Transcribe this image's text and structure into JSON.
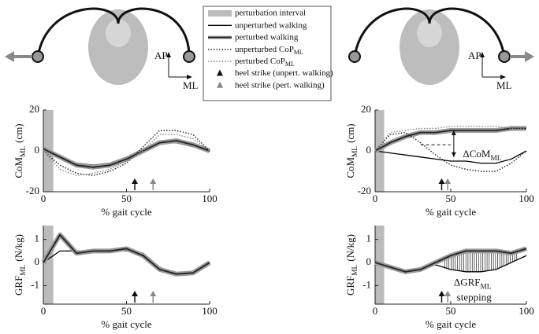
{
  "figures": [
    {
      "ap": "AP",
      "ml": "ML"
    },
    {
      "ap": "AP",
      "ml": "ML"
    }
  ],
  "chart_data": [
    {
      "type": "line",
      "xlabel": "% gait cycle",
      "ylabel": {
        "main": "CoM",
        "sub": "ML",
        "unit": "(cm)"
      },
      "x": [
        0,
        10,
        20,
        30,
        40,
        50,
        60,
        70,
        80,
        90,
        100
      ],
      "xlim": [
        0,
        100
      ],
      "xticks": [
        0,
        50,
        100
      ],
      "ylim": [
        -20,
        20
      ],
      "yticks": [
        -20,
        0,
        20
      ],
      "shade": {
        "name": "perturbation interval",
        "x": [
          0,
          6
        ],
        "color": "#bbbbbb"
      },
      "series": [
        {
          "name": "unperturbed walking",
          "style": "thin",
          "color": "#000000",
          "values": [
            0,
            -3,
            -6,
            -7,
            -6,
            -3,
            1,
            4,
            4,
            2,
            0
          ]
        },
        {
          "name": "perturbed walking",
          "style": "thick",
          "color": "#222222",
          "values": [
            1,
            -3,
            -7,
            -8,
            -7,
            -4,
            0,
            4,
            5,
            3,
            0
          ]
        },
        {
          "name": "unperturbed CoP",
          "name_sub": "ML",
          "style": "dotted",
          "color": "#222222",
          "values": [
            0,
            -7,
            -11,
            -12,
            -10,
            -6,
            2,
            10,
            10,
            8,
            0
          ]
        },
        {
          "name": "perturbed CoP",
          "name_sub": "ML",
          "style": "dotted",
          "color": "#888888",
          "values": [
            0,
            -9,
            -12,
            -11,
            -9,
            -5,
            0,
            8,
            8,
            6,
            0
          ]
        }
      ],
      "events": [
        {
          "name": "heel strike (unpert. walking)",
          "x": 55,
          "color": "#111111"
        },
        {
          "name": "heel strike (pert. walking)",
          "x": 66,
          "color": "#888888"
        }
      ]
    },
    {
      "type": "line",
      "xlabel": "% gait cycle",
      "ylabel": {
        "main": "CoM",
        "sub": "ML",
        "unit": "(cm)"
      },
      "x": [
        0,
        10,
        20,
        30,
        40,
        50,
        60,
        70,
        80,
        90,
        100
      ],
      "xlim": [
        0,
        100
      ],
      "xticks": [
        0,
        50,
        100
      ],
      "ylim": [
        -20,
        20
      ],
      "yticks": [
        -20,
        0,
        20
      ],
      "shade": {
        "x": [
          0,
          6
        ],
        "color": "#bbbbbb"
      },
      "series": [
        {
          "style": "thin",
          "color": "#000000",
          "values": [
            0,
            -1,
            -2,
            -3,
            -4,
            -5,
            -5,
            -6,
            -6,
            -4,
            0
          ]
        },
        {
          "style": "thick",
          "color": "#222222",
          "values": [
            0,
            4,
            7,
            9,
            9,
            10,
            10,
            10,
            10,
            11,
            11
          ]
        },
        {
          "style": "dotted",
          "color": "#222222",
          "values": [
            0,
            8,
            9,
            4,
            -2,
            -7,
            -9,
            -10,
            -10,
            -6,
            0
          ]
        },
        {
          "style": "dotted",
          "color": "#888888",
          "values": [
            0,
            9,
            10,
            11,
            11,
            12,
            12,
            12,
            12,
            11,
            11
          ]
        }
      ],
      "events": [
        {
          "x": 44,
          "color": "#111111"
        },
        {
          "x": 48,
          "color": "#888888"
        }
      ],
      "annotation": {
        "text": "ΔCoM",
        "sub": "ML"
      }
    },
    {
      "type": "line",
      "xlabel": "% gait cycle",
      "ylabel": {
        "main": "GRF",
        "sub": "ML",
        "unit": "(N/kg)"
      },
      "x": [
        0,
        10,
        20,
        30,
        40,
        50,
        60,
        70,
        80,
        90,
        100
      ],
      "xlim": [
        0,
        100
      ],
      "xticks": [
        0,
        50,
        100
      ],
      "ylim": [
        -1.8,
        1.6
      ],
      "yticks": [
        -1,
        0,
        1
      ],
      "shade": {
        "x": [
          0,
          6
        ],
        "color": "#bbbbbb"
      },
      "series": [
        {
          "style": "thin",
          "color": "#000000",
          "values": [
            0,
            0.5,
            0.5,
            0.5,
            0.5,
            0.5,
            0.4,
            -0.2,
            -0.5,
            -0.4,
            0
          ]
        },
        {
          "style": "thick",
          "color": "#222222",
          "values": [
            0,
            1.2,
            0.4,
            0.5,
            0.5,
            0.6,
            0.3,
            -0.3,
            -0.5,
            -0.45,
            0
          ]
        }
      ],
      "events": [
        {
          "x": 55,
          "color": "#111111"
        },
        {
          "x": 66,
          "color": "#888888"
        }
      ]
    },
    {
      "type": "line",
      "xlabel": "% gait cycle",
      "ylabel": {
        "main": "GRF",
        "sub": "ML",
        "unit": "(N/kg)"
      },
      "x": [
        0,
        10,
        20,
        30,
        40,
        50,
        60,
        70,
        80,
        90,
        100
      ],
      "xlim": [
        0,
        100
      ],
      "xticks": [
        0,
        50,
        100
      ],
      "ylim": [
        -1.8,
        1.6
      ],
      "yticks": [
        -1,
        0,
        1
      ],
      "shade": {
        "x": [
          0,
          6
        ],
        "color": "#bbbbbb"
      },
      "series": [
        {
          "style": "thin",
          "color": "#000000",
          "values": [
            0,
            -0.2,
            -0.4,
            -0.3,
            -0.1,
            -0.3,
            -0.4,
            -0.4,
            -0.3,
            0,
            0.3
          ]
        },
        {
          "style": "thick",
          "color": "#222222",
          "values": [
            0,
            -0.2,
            -0.4,
            -0.3,
            0,
            0.3,
            0.5,
            0.5,
            0.5,
            0.4,
            0.6
          ]
        }
      ],
      "events": [
        {
          "x": 44,
          "color": "#111111"
        },
        {
          "x": 48,
          "color": "#888888"
        }
      ],
      "annotation": {
        "text": "ΔGRF",
        "sub": "ML",
        "note": "stepping"
      }
    }
  ]
}
